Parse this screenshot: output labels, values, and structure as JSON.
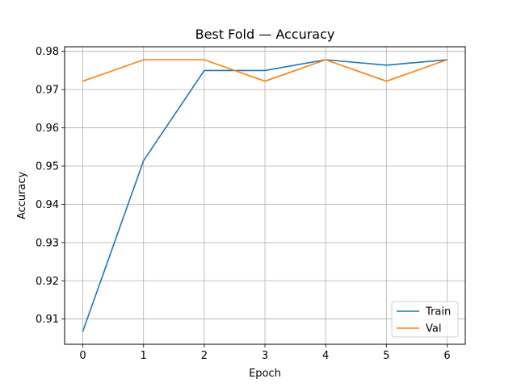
{
  "chart_data": {
    "type": "line",
    "title": "Best Fold — Accuracy",
    "xlabel": "Epoch",
    "ylabel": "Accuracy",
    "x": [
      0,
      1,
      2,
      3,
      4,
      5,
      6
    ],
    "xticks": [
      "0",
      "1",
      "2",
      "3",
      "4",
      "5",
      "6"
    ],
    "yticks": [
      "0.91",
      "0.92",
      "0.93",
      "0.94",
      "0.95",
      "0.96",
      "0.97",
      "0.98"
    ],
    "ytick_values": [
      0.91,
      0.92,
      0.93,
      0.94,
      0.95,
      0.96,
      0.97,
      0.98
    ],
    "xlim": [
      -0.3,
      6.3
    ],
    "ylim": [
      0.9034,
      0.9812
    ],
    "grid": true,
    "legend_position": "lower-right",
    "series": [
      {
        "name": "Train",
        "color": "#1f77b4",
        "values": [
          0.9068,
          0.9514,
          0.975,
          0.975,
          0.9778,
          0.9764,
          0.9778
        ]
      },
      {
        "name": "Val",
        "color": "#ff7f0e",
        "values": [
          0.9722,
          0.9778,
          0.9778,
          0.9722,
          0.9778,
          0.9722,
          0.9778
        ]
      }
    ]
  }
}
